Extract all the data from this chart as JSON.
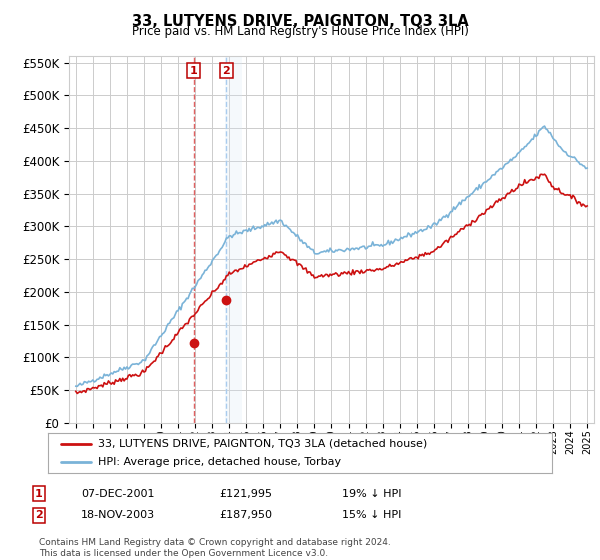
{
  "title": "33, LUTYENS DRIVE, PAIGNTON, TQ3 3LA",
  "subtitle": "Price paid vs. HM Land Registry's House Price Index (HPI)",
  "ylim": [
    0,
    560000
  ],
  "yticks": [
    0,
    50000,
    100000,
    150000,
    200000,
    250000,
    300000,
    350000,
    400000,
    450000,
    500000,
    550000
  ],
  "sale1_date": "07-DEC-2001",
  "sale1_price": 121995,
  "sale1_label": "1",
  "sale1_hpi_pct": "19% ↓ HPI",
  "sale2_date": "18-NOV-2003",
  "sale2_price": 187950,
  "sale2_label": "2",
  "sale2_hpi_pct": "15% ↓ HPI",
  "legend_line1": "33, LUTYENS DRIVE, PAIGNTON, TQ3 3LA (detached house)",
  "legend_line2": "HPI: Average price, detached house, Torbay",
  "footer": "Contains HM Land Registry data © Crown copyright and database right 2024.\nThis data is licensed under the Open Government Licence v3.0.",
  "hpi_color": "#7ab3d8",
  "price_color": "#cc1111",
  "bg_color": "#ffffff",
  "grid_color": "#cccccc",
  "highlight_band_color": "#d8e8f5",
  "highlight_dashed_color": "#e06060"
}
